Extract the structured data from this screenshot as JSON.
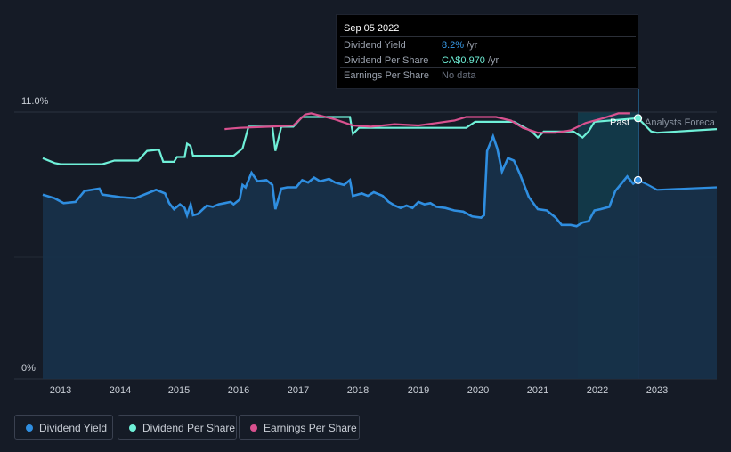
{
  "tooltip": {
    "date": "Sep 05 2022",
    "rows": [
      {
        "label": "Dividend Yield",
        "value": "8.2%",
        "unit": "/yr",
        "color": "#3ba1f0"
      },
      {
        "label": "Dividend Per Share",
        "value": "CA$0.970",
        "unit": "/yr",
        "color": "#6ff0d8"
      },
      {
        "label": "Earnings Per Share",
        "value": "No data",
        "unit": "",
        "color": "#6b7280"
      }
    ]
  },
  "axis": {
    "y_top_label": "11.0%",
    "y_bottom_label": "0%",
    "x_labels": [
      "2013",
      "2014",
      "2015",
      "2016",
      "2017",
      "2018",
      "2019",
      "2020",
      "2021",
      "2022",
      "2023"
    ]
  },
  "annotations": {
    "past": "Past",
    "forecast": "Analysts Foreca"
  },
  "legend": [
    {
      "label": "Dividend Yield",
      "color": "#2f8ee0"
    },
    {
      "label": "Dividend Per Share",
      "color": "#6ff0d8"
    },
    {
      "label": "Earnings Per Share",
      "color": "#d9518f"
    }
  ],
  "colors": {
    "yield": "#2f8ee0",
    "yield_fill": "#173049",
    "dps": "#6ff0d8",
    "eps": "#d9518f",
    "past_band": "#123c4c"
  },
  "chart_data": {
    "type": "line",
    "ylim": [
      0,
      11.0
    ],
    "xlim": [
      2012.7,
      2024.0
    ],
    "series": [
      {
        "name": "Dividend Yield",
        "unit": "%",
        "points": [
          [
            2012.7,
            7.6
          ],
          [
            2012.9,
            7.45
          ],
          [
            2013.05,
            7.25
          ],
          [
            2013.25,
            7.3
          ],
          [
            2013.4,
            7.75
          ],
          [
            2013.65,
            7.85
          ],
          [
            2013.7,
            7.6
          ],
          [
            2014.0,
            7.5
          ],
          [
            2014.25,
            7.45
          ],
          [
            2014.5,
            7.7
          ],
          [
            2014.6,
            7.8
          ],
          [
            2014.75,
            7.65
          ],
          [
            2014.82,
            7.25
          ],
          [
            2014.9,
            7.0
          ],
          [
            2015.0,
            7.2
          ],
          [
            2015.08,
            7.05
          ],
          [
            2015.12,
            6.75
          ],
          [
            2015.18,
            7.2
          ],
          [
            2015.22,
            6.75
          ],
          [
            2015.3,
            6.8
          ],
          [
            2015.45,
            7.15
          ],
          [
            2015.55,
            7.1
          ],
          [
            2015.65,
            7.2
          ],
          [
            2015.75,
            7.25
          ],
          [
            2015.85,
            7.3
          ],
          [
            2015.9,
            7.2
          ],
          [
            2016.0,
            7.4
          ],
          [
            2016.05,
            8.0
          ],
          [
            2016.1,
            7.9
          ],
          [
            2016.2,
            8.5
          ],
          [
            2016.3,
            8.15
          ],
          [
            2016.45,
            8.2
          ],
          [
            2016.55,
            8.0
          ],
          [
            2016.6,
            7.0
          ],
          [
            2016.7,
            7.85
          ],
          [
            2016.8,
            7.9
          ],
          [
            2016.95,
            7.9
          ],
          [
            2017.05,
            8.2
          ],
          [
            2017.15,
            8.1
          ],
          [
            2017.25,
            8.3
          ],
          [
            2017.35,
            8.15
          ],
          [
            2017.5,
            8.25
          ],
          [
            2017.6,
            8.1
          ],
          [
            2017.75,
            8.0
          ],
          [
            2017.85,
            8.2
          ],
          [
            2017.9,
            7.55
          ],
          [
            2018.05,
            7.65
          ],
          [
            2018.15,
            7.55
          ],
          [
            2018.25,
            7.7
          ],
          [
            2018.4,
            7.55
          ],
          [
            2018.5,
            7.3
          ],
          [
            2018.6,
            7.15
          ],
          [
            2018.7,
            7.05
          ],
          [
            2018.8,
            7.15
          ],
          [
            2018.9,
            7.05
          ],
          [
            2019.0,
            7.3
          ],
          [
            2019.1,
            7.2
          ],
          [
            2019.2,
            7.25
          ],
          [
            2019.3,
            7.1
          ],
          [
            2019.45,
            7.05
          ],
          [
            2019.6,
            6.95
          ],
          [
            2019.75,
            6.9
          ],
          [
            2019.9,
            6.7
          ],
          [
            2020.05,
            6.65
          ],
          [
            2020.1,
            6.75
          ],
          [
            2020.15,
            9.4
          ],
          [
            2020.25,
            10.0
          ],
          [
            2020.32,
            9.5
          ],
          [
            2020.4,
            8.55
          ],
          [
            2020.5,
            9.1
          ],
          [
            2020.6,
            9.0
          ],
          [
            2020.7,
            8.45
          ],
          [
            2020.85,
            7.5
          ],
          [
            2021.0,
            7.0
          ],
          [
            2021.15,
            6.95
          ],
          [
            2021.3,
            6.65
          ],
          [
            2021.4,
            6.35
          ],
          [
            2021.55,
            6.35
          ],
          [
            2021.65,
            6.3
          ],
          [
            2021.75,
            6.45
          ],
          [
            2021.85,
            6.5
          ],
          [
            2021.95,
            6.95
          ],
          [
            2022.05,
            7.0
          ],
          [
            2022.2,
            7.1
          ],
          [
            2022.3,
            7.75
          ],
          [
            2022.4,
            8.05
          ],
          [
            2022.5,
            8.35
          ],
          [
            2022.6,
            8.05
          ],
          [
            2022.68,
            8.2
          ]
        ],
        "forecast": [
          [
            2022.68,
            8.2
          ],
          [
            2022.85,
            8.0
          ],
          [
            2023.0,
            7.8
          ],
          [
            2024.0,
            7.9
          ]
        ]
      },
      {
        "name": "Dividend Per Share",
        "unit": "relative",
        "points": [
          [
            2012.7,
            9.1
          ],
          [
            2012.9,
            8.9
          ],
          [
            2013.0,
            8.85
          ],
          [
            2013.7,
            8.85
          ],
          [
            2013.9,
            9.0
          ],
          [
            2014.3,
            9.0
          ],
          [
            2014.45,
            9.4
          ],
          [
            2014.65,
            9.45
          ],
          [
            2014.72,
            8.95
          ],
          [
            2014.9,
            8.95
          ],
          [
            2014.95,
            9.15
          ],
          [
            2015.08,
            9.15
          ],
          [
            2015.12,
            9.7
          ],
          [
            2015.18,
            9.6
          ],
          [
            2015.22,
            9.2
          ],
          [
            2015.9,
            9.2
          ],
          [
            2016.05,
            9.5
          ],
          [
            2016.15,
            10.4
          ],
          [
            2016.55,
            10.4
          ],
          [
            2016.6,
            9.4
          ],
          [
            2016.7,
            10.4
          ],
          [
            2016.9,
            10.4
          ],
          [
            2017.05,
            10.8
          ],
          [
            2017.85,
            10.8
          ],
          [
            2017.9,
            10.1
          ],
          [
            2018.0,
            10.35
          ],
          [
            2019.8,
            10.35
          ],
          [
            2019.95,
            10.6
          ],
          [
            2020.6,
            10.6
          ],
          [
            2020.9,
            10.2
          ],
          [
            2021.0,
            9.95
          ],
          [
            2021.1,
            10.2
          ],
          [
            2021.6,
            10.2
          ],
          [
            2021.75,
            9.95
          ],
          [
            2021.85,
            10.2
          ],
          [
            2021.95,
            10.6
          ],
          [
            2022.68,
            10.75
          ]
        ],
        "forecast": [
          [
            2022.68,
            10.75
          ],
          [
            2022.9,
            10.2
          ],
          [
            2023.0,
            10.15
          ],
          [
            2024.0,
            10.3
          ]
        ]
      },
      {
        "name": "Earnings Per Share",
        "unit": "relative",
        "points": [
          [
            2015.75,
            10.3
          ],
          [
            2016.0,
            10.35
          ],
          [
            2016.5,
            10.4
          ],
          [
            2016.9,
            10.45
          ],
          [
            2017.1,
            10.9
          ],
          [
            2017.2,
            10.95
          ],
          [
            2017.6,
            10.7
          ],
          [
            2017.9,
            10.45
          ],
          [
            2018.2,
            10.4
          ],
          [
            2018.6,
            10.5
          ],
          [
            2019.0,
            10.45
          ],
          [
            2019.3,
            10.55
          ],
          [
            2019.6,
            10.65
          ],
          [
            2019.8,
            10.8
          ],
          [
            2020.3,
            10.8
          ],
          [
            2020.55,
            10.65
          ],
          [
            2020.75,
            10.35
          ],
          [
            2021.0,
            10.15
          ],
          [
            2021.3,
            10.15
          ],
          [
            2021.55,
            10.25
          ],
          [
            2021.8,
            10.55
          ],
          [
            2022.1,
            10.75
          ],
          [
            2022.35,
            10.95
          ],
          [
            2022.55,
            10.95
          ]
        ]
      }
    ]
  }
}
